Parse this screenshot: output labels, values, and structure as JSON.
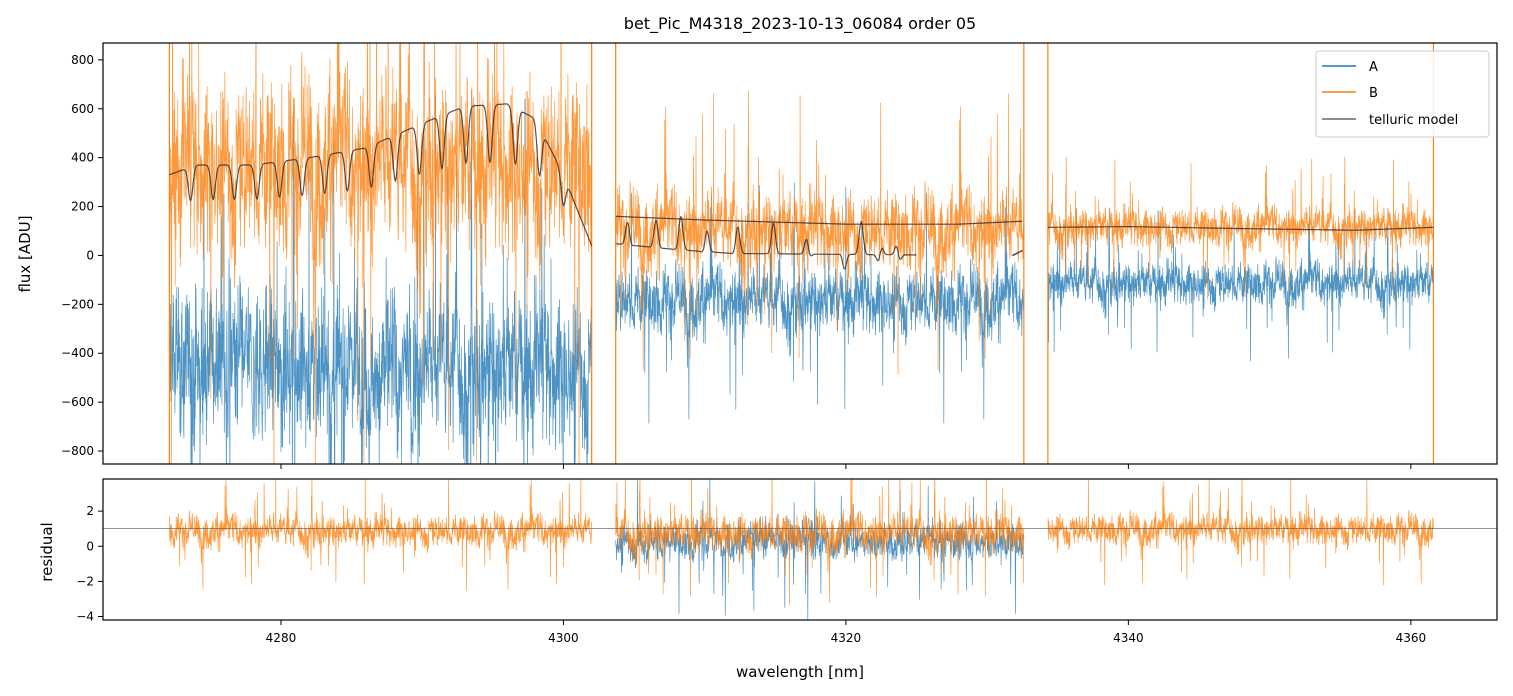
{
  "chart_data": [
    {
      "type": "line",
      "title": "bet_Pic_M4318_2023-10-13_06084  order 05",
      "xlabel": "",
      "ylabel": "flux [ADU]",
      "xlim": [
        4267.4,
        4366.1
      ],
      "ylim": [
        -853,
        869
      ],
      "xticks": [
        4280,
        4300,
        4320,
        4340,
        4360
      ],
      "yticks": [
        -800,
        -600,
        -400,
        -200,
        0,
        200,
        400,
        600,
        800
      ],
      "legend": {
        "placement": "top-right",
        "entries": [
          "A",
          "B",
          "telluric model"
        ]
      },
      "segments": [
        {
          "range": [
            4272.1,
            4302.0
          ],
          "A_mean": -450,
          "A_noise": 260,
          "B_mean": 380,
          "B_noise": 300
        },
        {
          "range": [
            4303.7,
            4332.6
          ],
          "A_mean": -180,
          "A_noise": 110,
          "B_mean": 110,
          "B_noise": 130
        },
        {
          "range": [
            4334.3,
            4361.6
          ],
          "A_mean": -110,
          "A_noise": 70,
          "B_mean": 120,
          "B_noise": 65
        }
      ],
      "telluric_model": [
        {
          "range": [
            4272.1,
            4302.0
          ],
          "continuum": [
            [
              4272.1,
              330
            ],
            [
              4274,
              370
            ],
            [
              4278,
              370
            ],
            [
              4282,
              400
            ],
            [
              4286,
              440
            ],
            [
              4290,
              540
            ],
            [
              4293,
              610
            ],
            [
              4296,
              620
            ],
            [
              4298,
              560
            ],
            [
              4300,
              330
            ],
            [
              4302,
              40
            ]
          ],
          "dips": [
            4273.6,
            4275.2,
            4276.7,
            4278.3,
            4279.9,
            4281.5,
            4283.1,
            4284.7,
            4286.4,
            4288.1,
            4289.8,
            4291.4,
            4293.1,
            4294.8,
            4296.6,
            4298.3,
            4300.0
          ],
          "dip_depth": 0.38
        },
        {
          "range": [
            4303.7,
            4332.5
          ],
          "continuum": [
            [
              4303.7,
              160
            ],
            [
              4310,
              145
            ],
            [
              4320,
              128
            ],
            [
              4328,
              128
            ],
            [
              4332.5,
              140
            ]
          ]
        },
        {
          "range": [
            4303.7,
            4325.0
          ],
          "continuum": [
            [
              4303.7,
              120
            ],
            [
              4308,
              60
            ],
            [
              4312,
              20
            ],
            [
              4325,
              5
            ]
          ],
          "dips": [
            4304.6,
            4306.6,
            4308.3,
            4310.1,
            4312.3,
            4314.9,
            4317.3,
            4319.9,
            4321.1,
            4322.4,
            4323.7
          ],
          "dip_depth": 1.0,
          "oscillating": true
        },
        {
          "range": [
            4331.8,
            4332.5
          ],
          "continuum": [
            [
              4331.8,
              0
            ],
            [
              4332.5,
              20
            ]
          ]
        },
        {
          "range": [
            4334.3,
            4361.6
          ],
          "continuum": [
            [
              4334.3,
              115
            ],
            [
              4340,
              118
            ],
            [
              4348,
              110
            ],
            [
              4356,
              103
            ],
            [
              4361.6,
              115
            ]
          ]
        }
      ],
      "colors": {
        "A": "#1f77b4",
        "B": "#ff7f0e",
        "telluric": "#333333"
      }
    },
    {
      "type": "line",
      "xlabel": "wavelength [nm]",
      "ylabel": "residual",
      "xlim": [
        4267.4,
        4366.1
      ],
      "ylim": [
        -4.2,
        3.83
      ],
      "xticks": [
        4280,
        4300,
        4320,
        4340,
        4360
      ],
      "yticks": [
        -4,
        -2,
        0,
        2
      ],
      "reference_line": 1,
      "segments": [
        {
          "range": [
            4272.1,
            4302.0
          ],
          "B_mean": 0.9,
          "B_noise": 0.75
        },
        {
          "range": [
            4303.7,
            4332.6
          ],
          "A_mean": 0.3,
          "A_noise": 0.9,
          "B_mean": 0.8,
          "B_noise": 0.9
        },
        {
          "range": [
            4334.3,
            4361.6
          ],
          "B_mean": 1.0,
          "B_noise": 0.7
        }
      ]
    }
  ]
}
